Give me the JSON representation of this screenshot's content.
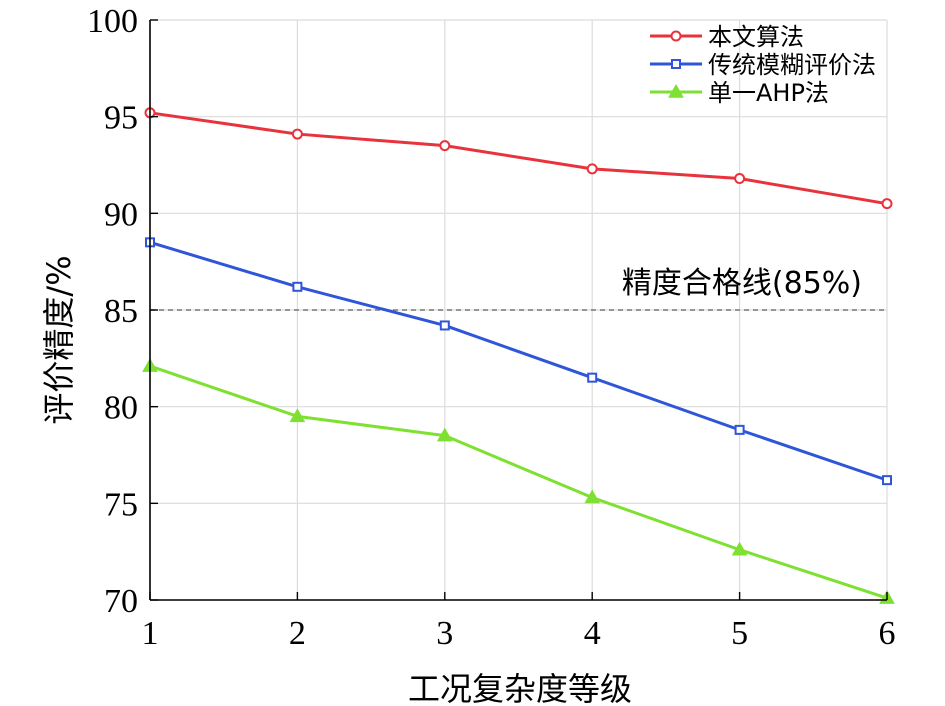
{
  "chart_data": {
    "type": "line",
    "title": "",
    "xlabel": "工况复杂度等级",
    "ylabel": "评价精度/%",
    "x": [
      1,
      2,
      3,
      4,
      5,
      6
    ],
    "xlim": [
      1,
      6
    ],
    "ylim": [
      70,
      100
    ],
    "xticks": [
      1,
      2,
      3,
      4,
      5,
      6
    ],
    "yticks": [
      70,
      75,
      80,
      85,
      90,
      95,
      100
    ],
    "grid": true,
    "legend_position": "top-right",
    "series": [
      {
        "name": "本文算法",
        "color": "#e8323c",
        "marker": "circle",
        "values": [
          95.2,
          94.1,
          93.5,
          92.3,
          91.8,
          90.5
        ]
      },
      {
        "name": "传统模糊评价法",
        "color": "#2f56d9",
        "marker": "square",
        "values": [
          88.5,
          86.2,
          84.2,
          81.5,
          78.8,
          76.2
        ]
      },
      {
        "name": "单一AHP法",
        "color": "#7ee030",
        "marker": "triangle",
        "values": [
          82.1,
          79.5,
          78.5,
          75.3,
          72.6,
          70.1
        ]
      }
    ],
    "reference_line": {
      "value": 85,
      "label": "精度合格线(85%)",
      "color": "#777777",
      "style": "dashed"
    }
  }
}
